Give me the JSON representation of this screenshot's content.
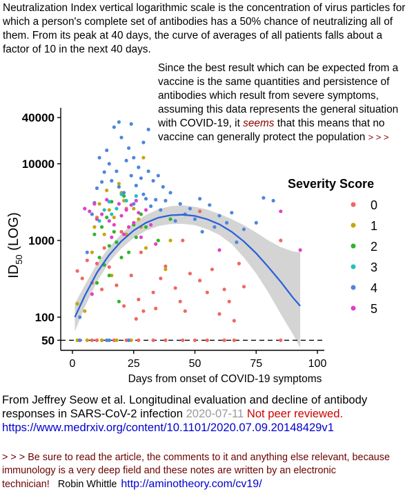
{
  "intro_text": "Neutralization Index vertical logarithmic scale is the concentration of virus particles for which a person's complete set of antibodies has a 50% chance of neutralizing all of them.  From its peak at 40 days, the curve of averages of all patients falls about a factor of 10 in the next 40 days.",
  "note": {
    "text_before": "Since the best result which can be expected from a vaccine is the same quantities and persistence of antibodies which result from severe symptoms, assuming this data represents the general situation with COVID-19, it ",
    "emphasis": "seems",
    "text_after": " that this means that no vaccine can generally protect the population ",
    "arrows": "> > >"
  },
  "citation": {
    "text": "From Jeffrey Seow et al. Longitudinal evaluation and decline of antibody responses in SARS-CoV-2 infection ",
    "date": "2020-07-11",
    "review_status": " Not peer reviewed.",
    "url": "https://www.medrxiv.org/content/10.1101/2020.07.09.20148429v1"
  },
  "footer": {
    "text": "> > >  Be sure to read the article, the comments to it and anything else relevant, because immunology is a very deep field and these notes are written by an electronic technician!",
    "author": "Robin Whittle",
    "website": "http://aminotheory.com/cv19/"
  },
  "chart_data": {
    "type": "scatter",
    "xlabel": "Days from onset of COVID-19 symptoms",
    "ylabel_main": "ID",
    "ylabel_sub": "50",
    "ylabel_suffix": " (LOG)",
    "x_ticks": [
      0,
      25,
      50,
      75,
      100
    ],
    "y_ticks": [
      50,
      100,
      1000,
      10000,
      40000
    ],
    "y_scale": "log",
    "xlim": [
      0,
      100
    ],
    "ylim": [
      50,
      40000
    ],
    "threshold_line": 50,
    "grid": false,
    "legend_title": "Severity Score",
    "legend_position": "right",
    "series": [
      {
        "name": "0",
        "color": "#f0685f",
        "points": [
          [
            3,
            50
          ],
          [
            8,
            50
          ],
          [
            10,
            50
          ],
          [
            12,
            50
          ],
          [
            17,
            50
          ],
          [
            22,
            50
          ],
          [
            27,
            50
          ],
          [
            33,
            50
          ],
          [
            38,
            50
          ],
          [
            45,
            50
          ],
          [
            50,
            50
          ],
          [
            55,
            50
          ],
          [
            62,
            50
          ],
          [
            66,
            50
          ],
          [
            85,
            50
          ],
          [
            2,
            400
          ],
          [
            4,
            320
          ],
          [
            6,
            550
          ],
          [
            8,
            280
          ],
          [
            10,
            500
          ],
          [
            12,
            230
          ],
          [
            15,
            450
          ],
          [
            13,
            800
          ],
          [
            18,
            260
          ],
          [
            21,
            140
          ],
          [
            24,
            350
          ],
          [
            20,
            1300
          ],
          [
            22,
            2600
          ],
          [
            26,
            95
          ],
          [
            27,
            170
          ],
          [
            29,
            120
          ],
          [
            28,
            700
          ],
          [
            33,
            210
          ],
          [
            34,
            130
          ],
          [
            36,
            320
          ],
          [
            38,
            460
          ],
          [
            42,
            240
          ],
          [
            44,
            160
          ],
          [
            46,
            120
          ],
          [
            48,
            370
          ],
          [
            52,
            300
          ],
          [
            55,
            210
          ],
          [
            57,
            420
          ],
          [
            60,
            110
          ],
          [
            62,
            230
          ],
          [
            64,
            160
          ],
          [
            66,
            90
          ],
          [
            68,
            500
          ],
          [
            70,
            250
          ],
          [
            52,
            2400
          ],
          [
            45,
            1000
          ],
          [
            85,
            1000
          ]
        ]
      },
      {
        "name": "1",
        "color": "#c8a50a",
        "points": [
          [
            2,
            150
          ],
          [
            2,
            50
          ],
          [
            5,
            120
          ],
          [
            6,
            50
          ],
          [
            8,
            700
          ],
          [
            9,
            1500
          ],
          [
            10,
            2000
          ],
          [
            11,
            3000
          ],
          [
            12,
            50
          ],
          [
            13,
            1200
          ],
          [
            14,
            4500
          ],
          [
            15,
            2500
          ],
          [
            16,
            350
          ],
          [
            17,
            2000
          ],
          [
            18,
            50
          ],
          [
            19,
            5500
          ],
          [
            20,
            4200
          ],
          [
            21,
            3300
          ],
          [
            22,
            1200
          ],
          [
            24,
            50
          ],
          [
            25,
            2600
          ],
          [
            27,
            1900
          ],
          [
            28,
            1500
          ],
          [
            29,
            12000
          ],
          [
            30,
            800
          ],
          [
            38,
            420
          ],
          [
            40,
            1000
          ]
        ]
      },
      {
        "name": "2",
        "color": "#2db52d",
        "points": [
          [
            9,
            1200
          ],
          [
            10,
            280
          ],
          [
            11,
            600
          ],
          [
            12,
            1500
          ],
          [
            13,
            480
          ],
          [
            14,
            2000
          ],
          [
            15,
            850
          ],
          [
            15,
            350
          ],
          [
            16,
            3200
          ],
          [
            17,
            1300
          ],
          [
            18,
            950
          ],
          [
            19,
            160
          ],
          [
            20,
            600
          ],
          [
            21,
            3800
          ],
          [
            23,
            700
          ],
          [
            25,
            1600
          ],
          [
            26,
            1100
          ],
          [
            28,
            2200
          ],
          [
            30,
            1500
          ],
          [
            35,
            1000
          ],
          [
            40,
            1900
          ]
        ]
      },
      {
        "name": "3",
        "color": "#1fc1c1",
        "points": [
          [
            11,
            1800
          ],
          [
            13,
            2500
          ],
          [
            15,
            3200
          ],
          [
            16,
            2200
          ],
          [
            18,
            2600
          ],
          [
            20,
            4000
          ],
          [
            22,
            3300
          ],
          [
            26,
            3800
          ]
        ]
      },
      {
        "name": "4",
        "color": "#4f86dc",
        "points": [
          [
            3,
            100
          ],
          [
            3,
            50
          ],
          [
            6,
            700
          ],
          [
            8,
            2200
          ],
          [
            9,
            3100
          ],
          [
            10,
            4800
          ],
          [
            11,
            12000
          ],
          [
            12,
            5800
          ],
          [
            13,
            7800
          ],
          [
            14,
            15000
          ],
          [
            15,
            10000
          ],
          [
            16,
            6000
          ],
          [
            17,
            30000
          ],
          [
            18,
            8000
          ],
          [
            19,
            5000
          ],
          [
            20,
            22000
          ],
          [
            21,
            4200
          ],
          [
            22,
            11000
          ],
          [
            23,
            16000
          ],
          [
            24,
            7000
          ],
          [
            25,
            3000
          ],
          [
            26,
            5200
          ],
          [
            27,
            9000
          ],
          [
            28,
            6500
          ],
          [
            29,
            4000
          ],
          [
            30,
            3500
          ],
          [
            31,
            8000
          ],
          [
            32,
            2800
          ],
          [
            33,
            6000
          ],
          [
            34,
            3400
          ],
          [
            35,
            7000
          ],
          [
            36,
            2500
          ],
          [
            37,
            5000
          ],
          [
            38,
            3300
          ],
          [
            40,
            4200
          ],
          [
            42,
            1800
          ],
          [
            44,
            3000
          ],
          [
            46,
            2200
          ],
          [
            48,
            2600
          ],
          [
            50,
            1900
          ],
          [
            52,
            3500
          ],
          [
            53,
            1300
          ],
          [
            56,
            2900
          ],
          [
            58,
            1500
          ],
          [
            60,
            2100
          ],
          [
            63,
            1700
          ],
          [
            65,
            2300
          ],
          [
            67,
            950
          ],
          [
            70,
            1400
          ],
          [
            75,
            1700
          ],
          [
            78,
            3600
          ],
          [
            82,
            3300
          ],
          [
            19,
            35000
          ],
          [
            24,
            33000
          ],
          [
            29,
            19000
          ],
          [
            31,
            28000
          ],
          [
            25,
            12000
          ],
          [
            14,
            50
          ],
          [
            15,
            50
          ],
          [
            23,
            50
          ]
        ]
      },
      {
        "name": "5",
        "color": "#e040c8",
        "points": [
          [
            5,
            2600
          ],
          [
            7,
            2400
          ],
          [
            8,
            200
          ],
          [
            9,
            3000
          ],
          [
            10,
            1900
          ],
          [
            12,
            2200
          ],
          [
            14,
            3400
          ],
          [
            15,
            1800
          ],
          [
            16,
            1100
          ],
          [
            17,
            1600
          ],
          [
            19,
            3000
          ],
          [
            20,
            2100
          ],
          [
            21,
            1200
          ],
          [
            22,
            2500
          ],
          [
            23,
            1500
          ],
          [
            24,
            2900
          ],
          [
            25,
            1700
          ],
          [
            26,
            3300
          ],
          [
            27,
            2300
          ],
          [
            28,
            1100
          ],
          [
            30,
            2500
          ],
          [
            32,
            1600
          ],
          [
            34,
            900
          ],
          [
            60,
            750
          ],
          [
            85,
            2400
          ],
          [
            93,
            750
          ]
        ]
      }
    ],
    "trend": {
      "x": [
        1,
        5,
        10,
        15,
        20,
        25,
        30,
        35,
        40,
        45,
        50,
        55,
        60,
        65,
        70,
        75,
        80,
        85,
        90,
        93
      ],
      "y": [
        100,
        190,
        380,
        650,
        980,
        1350,
        1700,
        1980,
        2130,
        2170,
        2090,
        1890,
        1620,
        1300,
        970,
        680,
        450,
        290,
        180,
        140
      ],
      "band_upper": [
        150,
        260,
        500,
        820,
        1220,
        1700,
        2150,
        2550,
        2800,
        2870,
        2760,
        2520,
        2220,
        1900,
        1580,
        1270,
        1000,
        820,
        720,
        700
      ],
      "band_lower": [
        65,
        135,
        290,
        520,
        790,
        1080,
        1340,
        1540,
        1640,
        1650,
        1580,
        1400,
        1180,
        900,
        600,
        370,
        210,
        110,
        60,
        40
      ],
      "color": "#2a62d8",
      "band_color": "#d4d4d4"
    }
  }
}
